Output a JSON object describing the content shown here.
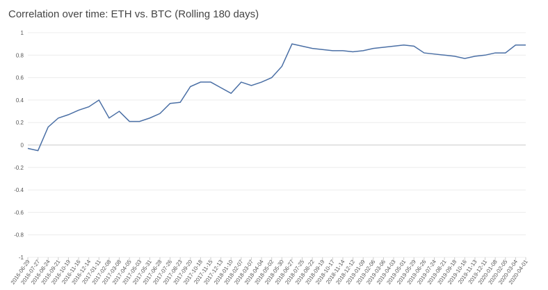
{
  "chart_data": {
    "type": "line",
    "title": "Correlation over time: ETH vs. BTC (Rolling 180 days)",
    "x": [
      "2016-06-29",
      "2016-07-27",
      "2016-08-24",
      "2016-09-21",
      "2016-10-19",
      "2016-11-16",
      "2016-12-14",
      "2017-01-11",
      "2017-02-08",
      "2017-03-08",
      "2017-04-05",
      "2017-05-03",
      "2017-05-31",
      "2017-06-28",
      "2017-07-26",
      "2017-08-23",
      "2017-09-20",
      "2017-10-18",
      "2017-11-15",
      "2017-12-13",
      "2018-01-10",
      "2018-02-07",
      "2018-03-07",
      "2018-04-04",
      "2018-05-02",
      "2018-05-30",
      "2018-06-27",
      "2018-07-25",
      "2018-08-22",
      "2018-09-19",
      "2018-10-17",
      "2018-11-14",
      "2018-12-12",
      "2019-01-09",
      "2019-02-06",
      "2019-03-06",
      "2019-04-03",
      "2019-05-01",
      "2019-05-29",
      "2019-06-26",
      "2019-07-24",
      "2019-08-21",
      "2019-09-18",
      "2019-10-16",
      "2019-11-13",
      "2019-12-11",
      "2020-01-08",
      "2020-02-05",
      "2020-03-04",
      "2020-04-01"
    ],
    "series": [
      {
        "name": "ETH vs. BTC",
        "color": "#4a6fa5",
        "values": [
          -0.03,
          -0.05,
          0.16,
          0.24,
          0.27,
          0.31,
          0.34,
          0.4,
          0.24,
          0.3,
          0.21,
          0.21,
          0.24,
          0.28,
          0.37,
          0.38,
          0.52,
          0.56,
          0.56,
          0.51,
          0.46,
          0.56,
          0.53,
          0.56,
          0.6,
          0.7,
          0.9,
          0.88,
          0.86,
          0.85,
          0.84,
          0.84,
          0.83,
          0.84,
          0.86,
          0.87,
          0.88,
          0.89,
          0.88,
          0.82,
          0.81,
          0.8,
          0.79,
          0.77,
          0.79,
          0.8,
          0.82,
          0.82,
          0.89,
          0.89
        ]
      }
    ],
    "xlim": [
      "2016-06-29",
      "2020-04-01"
    ],
    "xticks": [
      "2016-06-29",
      "2016-07-27",
      "2016-08-24",
      "2016-09-21",
      "2016-10-19",
      "2016-11-16",
      "2016-12-14",
      "2017-01-11",
      "2017-02-08",
      "2017-03-08",
      "2017-04-05",
      "2017-05-03",
      "2017-05-31",
      "2017-06-28",
      "2017-07-26",
      "2017-08-23",
      "2017-09-20",
      "2017-10-18",
      "2017-11-15",
      "2017-12-13",
      "2018-01-10",
      "2018-02-07",
      "2018-03-07",
      "2018-04-04",
      "2018-05-02",
      "2018-05-30",
      "2018-06-27",
      "2018-07-25",
      "2018-08-22",
      "2018-09-19",
      "2018-10-17",
      "2018-11-14",
      "2018-12-12",
      "2019-01-09",
      "2019-02-06",
      "2019-03-06",
      "2019-04-03",
      "2019-05-01",
      "2019-05-29",
      "2019-06-26",
      "2019-07-24",
      "2019-08-21",
      "2019-09-18",
      "2019-10-16",
      "2019-11-13",
      "2019-12-11",
      "2020-01-08",
      "2020-02-05",
      "2020-03-04",
      "2020-04-01"
    ],
    "ylim": [
      -1,
      1
    ],
    "yticks": [
      -1,
      -0.8,
      -0.6,
      -0.4,
      -0.2,
      0,
      0.2,
      0.4,
      0.6,
      0.8,
      1
    ],
    "grid": true
  }
}
